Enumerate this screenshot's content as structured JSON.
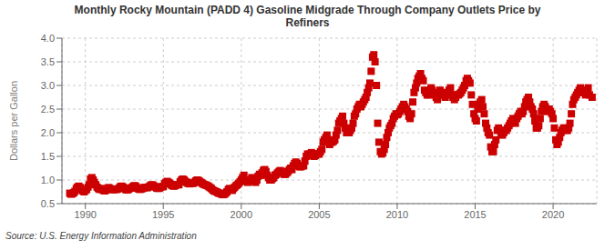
{
  "chart_data": {
    "type": "scatter",
    "title": "Monthly Rocky Mountain (PADD 4) Gasoline Midgrade Through Company Outlets Price by\nRefiners",
    "ylabel": "Dollars per Gallon",
    "source": "Source: U.S. Energy Information Administration",
    "color": "#cc0000",
    "marker": "square",
    "grid": true,
    "xlim": [
      1988.5,
      2022.8
    ],
    "ylim": [
      0.5,
      4.0
    ],
    "xticks": [
      1990,
      1995,
      2000,
      2005,
      2010,
      2015,
      2020
    ],
    "yticks": [
      0.5,
      {
        "value": 1.0,
        "label": "1.0"
      },
      1.5,
      {
        "value": 2.0,
        "label": "2.0"
      },
      2.5,
      {
        "value": 3.0,
        "label": "3.0"
      },
      3.5,
      {
        "value": 4.0,
        "label": "4.0"
      }
    ],
    "x": [
      1989.0,
      1989.08,
      1989.17,
      1989.25,
      1989.33,
      1989.42,
      1989.5,
      1989.58,
      1989.67,
      1989.75,
      1989.83,
      1989.92,
      1990.0,
      1990.08,
      1990.17,
      1990.25,
      1990.33,
      1990.42,
      1990.5,
      1990.58,
      1990.67,
      1990.75,
      1990.83,
      1990.92,
      1991.0,
      1991.08,
      1991.17,
      1991.25,
      1991.33,
      1991.42,
      1991.5,
      1991.58,
      1991.67,
      1991.75,
      1991.83,
      1991.92,
      1992.0,
      1992.08,
      1992.17,
      1992.25,
      1992.33,
      1992.42,
      1992.5,
      1992.58,
      1992.67,
      1992.75,
      1992.83,
      1992.92,
      1993.0,
      1993.08,
      1993.17,
      1993.25,
      1993.33,
      1993.42,
      1993.5,
      1993.58,
      1993.67,
      1993.75,
      1993.83,
      1993.92,
      1994.0,
      1994.08,
      1994.17,
      1994.25,
      1994.33,
      1994.42,
      1994.5,
      1994.58,
      1994.67,
      1994.75,
      1994.83,
      1994.92,
      1995.0,
      1995.08,
      1995.17,
      1995.25,
      1995.33,
      1995.42,
      1995.5,
      1995.58,
      1995.67,
      1995.75,
      1995.83,
      1995.92,
      1996.0,
      1996.08,
      1996.17,
      1996.25,
      1996.33,
      1996.42,
      1996.5,
      1996.58,
      1996.67,
      1996.75,
      1996.83,
      1996.92,
      1997.0,
      1997.08,
      1997.17,
      1997.25,
      1997.33,
      1997.42,
      1997.5,
      1997.58,
      1997.67,
      1997.75,
      1997.83,
      1997.92,
      1998.0,
      1998.08,
      1998.17,
      1998.25,
      1998.33,
      1998.42,
      1998.5,
      1998.58,
      1998.67,
      1998.75,
      1998.83,
      1998.92,
      1999.0,
      1999.08,
      1999.17,
      1999.25,
      1999.33,
      1999.42,
      1999.5,
      1999.58,
      1999.67,
      1999.75,
      1999.83,
      1999.92,
      2000.0,
      2000.08,
      2000.17,
      2000.25,
      2000.33,
      2000.42,
      2000.5,
      2000.58,
      2000.67,
      2000.75,
      2000.83,
      2000.92,
      2001.0,
      2001.08,
      2001.17,
      2001.25,
      2001.33,
      2001.42,
      2001.5,
      2001.58,
      2001.67,
      2001.75,
      2001.83,
      2001.92,
      2002.0,
      2002.08,
      2002.17,
      2002.25,
      2002.33,
      2002.42,
      2002.5,
      2002.58,
      2002.67,
      2002.75,
      2002.83,
      2002.92,
      2003.0,
      2003.08,
      2003.17,
      2003.25,
      2003.33,
      2003.42,
      2003.5,
      2003.58,
      2003.67,
      2003.75,
      2003.83,
      2003.92,
      2004.0,
      2004.08,
      2004.17,
      2004.25,
      2004.33,
      2004.42,
      2004.5,
      2004.58,
      2004.67,
      2004.75,
      2004.83,
      2004.92,
      2005.0,
      2005.08,
      2005.17,
      2005.25,
      2005.33,
      2005.42,
      2005.5,
      2005.58,
      2005.67,
      2005.75,
      2005.83,
      2005.92,
      2006.0,
      2006.08,
      2006.17,
      2006.25,
      2006.33,
      2006.42,
      2006.5,
      2006.58,
      2006.67,
      2006.75,
      2006.83,
      2006.92,
      2007.0,
      2007.08,
      2007.17,
      2007.25,
      2007.33,
      2007.42,
      2007.5,
      2007.58,
      2007.67,
      2007.75,
      2007.83,
      2007.92,
      2008.0,
      2008.08,
      2008.17,
      2008.25,
      2008.33,
      2008.42,
      2008.5,
      2008.58,
      2008.67,
      2008.75,
      2008.83,
      2008.92,
      2009.0,
      2009.08,
      2009.17,
      2009.25,
      2009.33,
      2009.42,
      2009.5,
      2009.58,
      2009.67,
      2009.75,
      2009.83,
      2009.92,
      2010.0,
      2010.08,
      2010.17,
      2010.25,
      2010.33,
      2010.42,
      2010.5,
      2010.58,
      2010.67,
      2010.75,
      2010.83,
      2010.92,
      2011.0,
      2011.08,
      2011.17,
      2011.25,
      2011.33,
      2011.42,
      2011.5,
      2011.58,
      2011.67,
      2011.75,
      2011.83,
      2011.92,
      2012.0,
      2012.08,
      2012.17,
      2012.25,
      2012.33,
      2012.42,
      2012.5,
      2012.58,
      2012.67,
      2012.75,
      2012.83,
      2012.92,
      2013.0,
      2013.08,
      2013.17,
      2013.25,
      2013.33,
      2013.42,
      2013.5,
      2013.58,
      2013.67,
      2013.75,
      2013.83,
      2013.92,
      2014.0,
      2014.08,
      2014.17,
      2014.25,
      2014.33,
      2014.42,
      2014.5,
      2014.58,
      2014.67,
      2014.75,
      2014.83,
      2014.92,
      2015.0,
      2015.08,
      2015.17,
      2015.25,
      2015.33,
      2015.42,
      2015.5,
      2015.58,
      2015.67,
      2015.75,
      2015.83,
      2015.92,
      2016.0,
      2016.08,
      2016.17,
      2016.25,
      2016.33,
      2016.42,
      2016.5,
      2016.58,
      2016.67,
      2016.75,
      2016.83,
      2016.92,
      2017.0,
      2017.08,
      2017.17,
      2017.25,
      2017.33,
      2017.42,
      2017.5,
      2017.58,
      2017.67,
      2017.75,
      2017.83,
      2017.92,
      2018.0,
      2018.08,
      2018.17,
      2018.25,
      2018.33,
      2018.42,
      2018.5,
      2018.58,
      2018.67,
      2018.75,
      2018.83,
      2018.92,
      2019.0,
      2019.08,
      2019.17,
      2019.25,
      2019.33,
      2019.42,
      2019.5,
      2019.58,
      2019.67,
      2019.75,
      2019.83,
      2019.92,
      2020.0,
      2020.08,
      2020.17,
      2020.25,
      2020.33,
      2020.42,
      2020.5,
      2020.58,
      2020.67,
      2020.75,
      2020.83,
      2020.92,
      2021.0,
      2021.08,
      2021.17,
      2021.25,
      2021.33,
      2021.42,
      2021.5,
      2021.58,
      2021.67,
      2021.75,
      2021.83,
      2021.92,
      2022.0,
      2022.08,
      2022.17,
      2022.25,
      2022.33,
      2022.5
    ],
    "values": [
      0.72,
      0.7,
      0.71,
      0.73,
      0.76,
      0.82,
      0.85,
      0.87,
      0.84,
      0.8,
      0.77,
      0.75,
      0.78,
      0.8,
      0.85,
      0.9,
      1.02,
      1.05,
      1.0,
      0.95,
      0.9,
      0.85,
      0.82,
      0.8,
      0.82,
      0.8,
      0.78,
      0.77,
      0.79,
      0.82,
      0.84,
      0.82,
      0.8,
      0.8,
      0.8,
      0.8,
      0.8,
      0.81,
      0.83,
      0.86,
      0.87,
      0.85,
      0.83,
      0.8,
      0.79,
      0.8,
      0.82,
      0.83,
      0.84,
      0.87,
      0.88,
      0.86,
      0.83,
      0.81,
      0.8,
      0.81,
      0.82,
      0.84,
      0.84,
      0.84,
      0.84,
      0.86,
      0.88,
      0.9,
      0.89,
      0.87,
      0.85,
      0.83,
      0.82,
      0.83,
      0.85,
      0.86,
      0.86,
      0.92,
      0.95,
      0.97,
      0.95,
      0.93,
      0.9,
      0.88,
      0.87,
      0.88,
      0.9,
      0.9,
      0.9,
      0.96,
      1.0,
      1.02,
      1.0,
      0.97,
      0.95,
      0.93,
      0.92,
      0.93,
      0.93,
      0.93,
      0.95,
      0.98,
      1.0,
      0.99,
      0.97,
      0.95,
      0.93,
      0.91,
      0.9,
      0.89,
      0.88,
      0.86,
      0.84,
      0.82,
      0.79,
      0.77,
      0.76,
      0.75,
      0.73,
      0.72,
      0.71,
      0.7,
      0.69,
      0.7,
      0.72,
      0.75,
      0.8,
      0.82,
      0.8,
      0.78,
      0.82,
      0.85,
      0.88,
      0.9,
      0.93,
      0.96,
      1.0,
      1.05,
      1.1,
      1.0,
      0.98,
      0.95,
      0.97,
      1.0,
      1.05,
      1.02,
      0.98,
      0.95,
      1.0,
      1.08,
      1.12,
      1.1,
      1.15,
      1.2,
      1.22,
      1.18,
      1.1,
      1.05,
      1.0,
      1.0,
      1.03,
      1.05,
      1.1,
      1.12,
      1.15,
      1.18,
      1.2,
      1.18,
      1.15,
      1.12,
      1.12,
      1.15,
      1.18,
      1.22,
      1.25,
      1.22,
      1.3,
      1.35,
      1.38,
      1.35,
      1.3,
      1.28,
      1.28,
      1.3,
      1.3,
      1.4,
      1.5,
      1.55,
      1.52,
      1.55,
      1.58,
      1.55,
      1.5,
      1.52,
      1.55,
      1.55,
      1.55,
      1.6,
      1.65,
      1.8,
      1.85,
      1.9,
      1.95,
      1.85,
      1.75,
      1.8,
      1.8,
      1.82,
      1.85,
      1.95,
      2.05,
      2.2,
      2.25,
      2.3,
      2.35,
      2.2,
      2.1,
      2.0,
      2.0,
      2.0,
      2.05,
      2.1,
      2.2,
      2.35,
      2.4,
      2.5,
      2.55,
      2.6,
      2.55,
      2.6,
      2.65,
      2.7,
      2.75,
      2.85,
      2.95,
      3.05,
      3.3,
      3.6,
      3.65,
      3.5,
      3.0,
      2.2,
      1.8,
      1.6,
      1.55,
      1.58,
      1.65,
      1.75,
      1.9,
      2.0,
      2.1,
      2.15,
      2.2,
      2.3,
      2.35,
      2.4,
      2.38,
      2.4,
      2.45,
      2.5,
      2.55,
      2.6,
      2.55,
      2.5,
      2.45,
      2.35,
      2.3,
      2.4,
      2.65,
      2.85,
      2.95,
      3.05,
      3.15,
      3.2,
      3.25,
      3.15,
      3.1,
      2.9,
      2.85,
      2.8,
      2.8,
      2.9,
      2.95,
      2.9,
      2.85,
      2.8,
      2.75,
      2.7,
      2.8,
      2.9,
      2.85,
      2.8,
      2.8,
      2.75,
      2.8,
      2.85,
      2.9,
      2.95,
      2.8,
      2.75,
      2.7,
      2.75,
      2.8,
      2.8,
      2.82,
      2.85,
      2.9,
      2.95,
      3.0,
      3.1,
      3.15,
      3.1,
      3.05,
      2.8,
      2.6,
      2.4,
      2.3,
      2.25,
      2.5,
      2.6,
      2.65,
      2.7,
      2.55,
      2.4,
      2.2,
      2.1,
      2.0,
      1.95,
      1.7,
      1.6,
      1.6,
      1.75,
      1.85,
      2.05,
      2.1,
      2.05,
      2.0,
      1.95,
      2.0,
      2.05,
      2.05,
      2.1,
      2.15,
      2.2,
      2.25,
      2.3,
      2.25,
      2.2,
      2.3,
      2.35,
      2.4,
      2.45,
      2.4,
      2.45,
      2.55,
      2.65,
      2.7,
      2.75,
      2.65,
      2.55,
      2.5,
      2.4,
      2.25,
      2.1,
      2.1,
      2.15,
      2.3,
      2.45,
      2.55,
      2.6,
      2.55,
      2.5,
      2.45,
      2.5,
      2.45,
      2.4,
      2.3,
      2.1,
      1.85,
      1.75,
      1.8,
      1.9,
      2.0,
      2.05,
      2.1,
      2.1,
      2.05,
      2.05,
      2.1,
      2.2,
      2.4,
      2.6,
      2.7,
      2.75,
      2.8,
      2.85,
      2.9,
      2.95,
      2.9,
      2.85,
      2.9,
      2.8,
      2.9,
      2.95,
      2.8,
      2.75
    ]
  }
}
